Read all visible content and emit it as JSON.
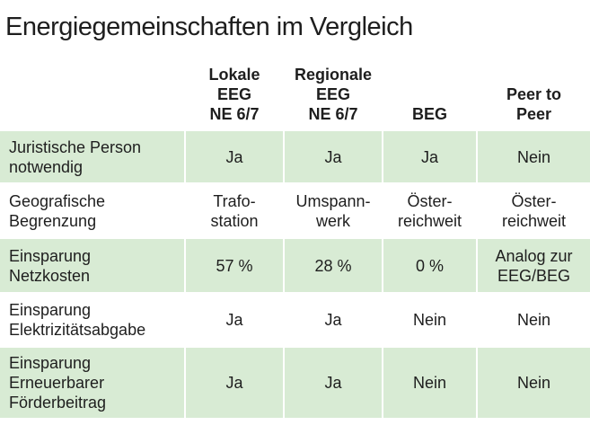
{
  "title": "Energiegemeinschaften im Vergleich",
  "table": {
    "header": [
      [],
      [
        "Lokale",
        "EEG",
        "NE 6/7"
      ],
      [
        "Regionale",
        "EEG",
        "NE 6/7"
      ],
      [
        "BEG"
      ],
      [
        "Peer to",
        "Peer"
      ]
    ],
    "rows": [
      [
        [
          "Juristische Person",
          "notwendig"
        ],
        [
          "Ja"
        ],
        [
          "Ja"
        ],
        [
          "Ja"
        ],
        [
          "Nein"
        ]
      ],
      [
        [
          "Geografische",
          "Begrenzung"
        ],
        [
          "Trafo-",
          "station"
        ],
        [
          "Umspann-",
          "werk"
        ],
        [
          "Öster-",
          "reichweit"
        ],
        [
          "Öster-",
          "reichweit"
        ]
      ],
      [
        [
          "Einsparung",
          "Netzkosten"
        ],
        [
          "57 %"
        ],
        [
          "28 %"
        ],
        [
          "0 %"
        ],
        [
          "Analog zur",
          "EEG/BEG"
        ]
      ],
      [
        [
          "Einsparung",
          "Elektrizitätsabgabe"
        ],
        [
          "Ja"
        ],
        [
          "Ja"
        ],
        [
          "Nein"
        ],
        [
          "Nein"
        ]
      ],
      [
        [
          "Einsparung",
          "Erneuerbarer",
          "Förderbeitrag"
        ],
        [
          "Ja"
        ],
        [
          "Ja"
        ],
        [
          "Nein"
        ],
        [
          "Nein"
        ]
      ]
    ]
  }
}
